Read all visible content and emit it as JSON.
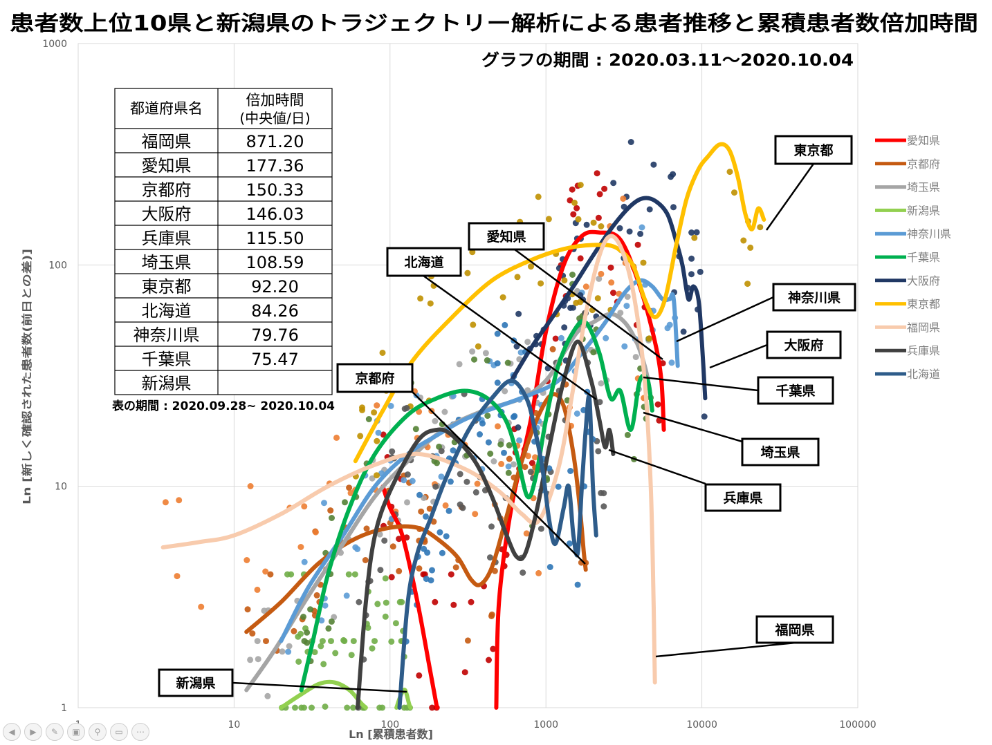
{
  "title": "患者数上位10県と新潟県のトラジェクトリー解析による患者推移と累積患者数倍加時間",
  "period_label": "グラフの期間 : 2020.03.11～2020.10.04",
  "table": {
    "headers": [
      "都道府県名",
      "倍加時間",
      "(中央値/日)"
    ],
    "rows": [
      [
        "福岡県",
        "871.20"
      ],
      [
        "愛知県",
        "177.36"
      ],
      [
        "京都府",
        "150.33"
      ],
      [
        "大阪府",
        "146.03"
      ],
      [
        "兵庫県",
        "115.50"
      ],
      [
        "埼玉県",
        "108.59"
      ],
      [
        "東京都",
        "92.20"
      ],
      [
        "北海道",
        "84.26"
      ],
      [
        "神奈川県",
        "79.76"
      ],
      [
        "千葉県",
        "75.47"
      ],
      [
        "新潟県",
        ""
      ]
    ],
    "period_note": "表の期間 : 2020.09.28~ 2020.10.04"
  },
  "chart_data": {
    "type": "scatter",
    "scale": "log-log",
    "xlabel": "Ln [累積患者数]",
    "ylabel": "Ln [新しく確認された患者数(前日との差)]",
    "xlim": [
      1,
      100000
    ],
    "ylim": [
      1,
      1000
    ],
    "x_ticks": [
      "1",
      "10",
      "100",
      "1000",
      "10000",
      "100000"
    ],
    "y_ticks": [
      "1",
      "10",
      "100",
      "1000"
    ],
    "grid": true,
    "legend_position": "right",
    "series": [
      {
        "name": "愛知県",
        "color": "#ff0000",
        "curve": [
          [
            200,
            1
          ],
          [
            180,
            1.5
          ],
          [
            150,
            3
          ],
          [
            120,
            6
          ],
          [
            100,
            8
          ],
          [
            90,
            10
          ]
        ],
        "curve2": [
          [
            480,
            1
          ],
          [
            500,
            3
          ],
          [
            600,
            8
          ],
          [
            800,
            20
          ],
          [
            1000,
            50
          ],
          [
            1300,
            100
          ],
          [
            1700,
            135
          ],
          [
            2200,
            140
          ],
          [
            3000,
            130
          ],
          [
            4000,
            80
          ],
          [
            5000,
            45
          ],
          [
            5500,
            30
          ],
          [
            5700,
            18
          ]
        ]
      },
      {
        "name": "京都府",
        "color": "#c55a11",
        "curve": [
          [
            12,
            2.2
          ],
          [
            20,
            3
          ],
          [
            35,
            4.5
          ],
          [
            60,
            5.8
          ],
          [
            100,
            6.5
          ],
          [
            150,
            6.5
          ],
          [
            200,
            5.8
          ],
          [
            270,
            4.8
          ],
          [
            330,
            3.8
          ],
          [
            380,
            3.6
          ],
          [
            450,
            4.3
          ],
          [
            550,
            7
          ],
          [
            700,
            13
          ],
          [
            900,
            21
          ],
          [
            1100,
            26
          ],
          [
            1300,
            23
          ],
          [
            1500,
            14
          ],
          [
            1650,
            8
          ],
          [
            1750,
            5
          ],
          [
            1800,
            4.2
          ]
        ]
      },
      {
        "name": "埼玉県",
        "color": "#a5a5a5",
        "curve": [
          [
            12,
            1.2
          ],
          [
            18,
            1.8
          ],
          [
            30,
            3.2
          ],
          [
            50,
            5.5
          ],
          [
            80,
            9
          ],
          [
            130,
            13
          ],
          [
            220,
            18
          ],
          [
            400,
            22
          ],
          [
            700,
            25
          ],
          [
            1000,
            30
          ],
          [
            1300,
            40
          ],
          [
            1600,
            50
          ],
          [
            2000,
            55
          ],
          [
            2600,
            60
          ],
          [
            3200,
            55
          ],
          [
            3800,
            45
          ],
          [
            4300,
            35
          ],
          [
            4600,
            28
          ],
          [
            4800,
            22
          ]
        ]
      },
      {
        "name": "新潟県",
        "color": "#92d050",
        "curve": [
          [
            20,
            1
          ],
          [
            27,
            1.15
          ],
          [
            35,
            1.28
          ],
          [
            44,
            1.3
          ],
          [
            55,
            1.2
          ],
          [
            65,
            1.05
          ],
          [
            70,
            1
          ]
        ],
        "curve2": [
          [
            110,
            1
          ],
          [
            118,
            1.15
          ],
          [
            125,
            1.2
          ],
          [
            132,
            1.05
          ],
          [
            135,
            1
          ]
        ]
      },
      {
        "name": "神奈川県",
        "color": "#5b9bd5",
        "curve": [
          [
            20,
            2
          ],
          [
            30,
            3.5
          ],
          [
            50,
            6
          ],
          [
            80,
            10
          ],
          [
            130,
            14
          ],
          [
            200,
            17
          ],
          [
            300,
            20
          ],
          [
            500,
            23
          ],
          [
            800,
            26
          ],
          [
            1200,
            30
          ],
          [
            1700,
            40
          ],
          [
            2400,
            55
          ],
          [
            3200,
            75
          ],
          [
            4000,
            85
          ],
          [
            4800,
            80
          ],
          [
            5600,
            70
          ],
          [
            6200,
            70
          ],
          [
            6600,
            70
          ],
          [
            7000,
            35
          ]
        ]
      },
      {
        "name": "千葉県",
        "color": "#00b050",
        "curve": [
          [
            27,
            1.2
          ],
          [
            32,
            2
          ],
          [
            40,
            4
          ],
          [
            55,
            8
          ],
          [
            80,
            14
          ],
          [
            130,
            21
          ],
          [
            200,
            25
          ],
          [
            300,
            27
          ],
          [
            420,
            25
          ],
          [
            550,
            20
          ],
          [
            650,
            14
          ],
          [
            760,
            9
          ],
          [
            860,
            11
          ],
          [
            1000,
            20
          ],
          [
            1200,
            35
          ],
          [
            1500,
            50
          ],
          [
            1800,
            55
          ],
          [
            2200,
            40
          ],
          [
            2600,
            25
          ],
          [
            3000,
            27
          ],
          [
            3500,
            18
          ],
          [
            4000,
            30
          ],
          [
            4500,
            30
          ],
          [
            4800,
            22
          ]
        ]
      },
      {
        "name": "大阪府",
        "color": "#203864",
        "curve": [
          [
            600,
            30
          ],
          [
            800,
            42
          ],
          [
            1100,
            58
          ],
          [
            1500,
            80
          ],
          [
            2000,
            110
          ],
          [
            2700,
            150
          ],
          [
            3500,
            185
          ],
          [
            4200,
            200
          ],
          [
            5000,
            195
          ],
          [
            6000,
            170
          ],
          [
            6800,
            130
          ],
          [
            7500,
            100
          ],
          [
            8200,
            70
          ],
          [
            8800,
            80
          ],
          [
            9500,
            70
          ],
          [
            10000,
            45
          ],
          [
            10500,
            25
          ]
        ]
      },
      {
        "name": "東京都",
        "color": "#ffc000",
        "curve": [
          [
            60,
            13
          ],
          [
            90,
            22
          ],
          [
            140,
            37
          ],
          [
            250,
            58
          ],
          [
            450,
            85
          ],
          [
            800,
            105
          ],
          [
            1300,
            118
          ],
          [
            2000,
            123
          ],
          [
            2800,
            120
          ],
          [
            3600,
            100
          ],
          [
            4300,
            70
          ],
          [
            5000,
            58
          ],
          [
            5800,
            70
          ],
          [
            6800,
            120
          ],
          [
            8000,
            200
          ],
          [
            9500,
            270
          ],
          [
            11000,
            310
          ],
          [
            13000,
            350
          ],
          [
            15000,
            330
          ],
          [
            17000,
            250
          ],
          [
            19000,
            170
          ],
          [
            21000,
            145
          ],
          [
            23000,
            180
          ],
          [
            25000,
            160
          ]
        ]
      },
      {
        "name": "福岡県",
        "color": "#f8cbad",
        "curve": [
          [
            3.5,
            5.3
          ],
          [
            6,
            5.6
          ],
          [
            10,
            6
          ],
          [
            20,
            7.5
          ],
          [
            40,
            10
          ],
          [
            80,
            12.5
          ],
          [
            150,
            14
          ],
          [
            300,
            12
          ],
          [
            500,
            9.5
          ],
          [
            700,
            7.5
          ],
          [
            900,
            7
          ],
          [
            1200,
            12
          ],
          [
            1500,
            28
          ],
          [
            1800,
            60
          ],
          [
            2200,
            110
          ],
          [
            2600,
            135
          ],
          [
            3100,
            115
          ],
          [
            3700,
            70
          ],
          [
            4300,
            30
          ],
          [
            4700,
            10
          ],
          [
            4900,
            3
          ],
          [
            5000,
            1.3
          ]
        ]
      },
      {
        "name": "兵庫県",
        "color": "#404040",
        "curve": [
          [
            62,
            1
          ],
          [
            70,
            3
          ],
          [
            80,
            6
          ],
          [
            100,
            9.5
          ],
          [
            150,
            16
          ],
          [
            200,
            18
          ],
          [
            250,
            17
          ],
          [
            350,
            13
          ],
          [
            450,
            9
          ],
          [
            560,
            6
          ],
          [
            650,
            4.8
          ],
          [
            740,
            5
          ],
          [
            880,
            8
          ],
          [
            1050,
            15
          ],
          [
            1300,
            30
          ],
          [
            1600,
            45
          ],
          [
            1950,
            30
          ],
          [
            2200,
            20
          ],
          [
            2400,
            15
          ],
          [
            2550,
            18
          ],
          [
            2700,
            14
          ]
        ]
      },
      {
        "name": "北海道",
        "color": "#2e5c8a",
        "curve": [
          [
            115,
            1
          ],
          [
            130,
            3
          ],
          [
            150,
            5
          ],
          [
            180,
            7
          ],
          [
            230,
            11
          ],
          [
            320,
            18
          ],
          [
            450,
            25
          ],
          [
            600,
            30
          ],
          [
            750,
            25
          ],
          [
            850,
            18
          ],
          [
            950,
            12
          ],
          [
            1050,
            7
          ],
          [
            1150,
            5.5
          ],
          [
            1300,
            8
          ],
          [
            1400,
            10
          ],
          [
            1500,
            6
          ],
          [
            1600,
            5
          ],
          [
            1700,
            10
          ],
          [
            1800,
            18
          ],
          [
            1900,
            25
          ],
          [
            2000,
            10
          ],
          [
            2100,
            6
          ]
        ]
      }
    ],
    "annotations": [
      {
        "label": "東京都"
      },
      {
        "label": "愛知県"
      },
      {
        "label": "北海道"
      },
      {
        "label": "京都府"
      },
      {
        "label": "神奈川県"
      },
      {
        "label": "大阪府"
      },
      {
        "label": "千葉県"
      },
      {
        "label": "埼玉県"
      },
      {
        "label": "兵庫県"
      },
      {
        "label": "福岡県"
      },
      {
        "label": "新潟県"
      }
    ]
  }
}
